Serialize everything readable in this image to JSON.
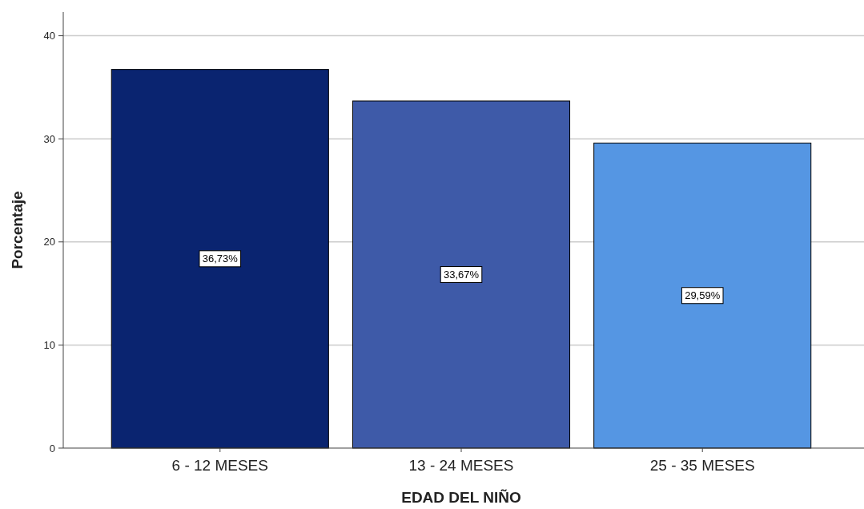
{
  "chart_data": {
    "type": "bar",
    "xlabel": "EDAD DEL NIÑO",
    "ylabel": "Porcentaje",
    "categories": [
      "6 - 12 MESES",
      "13 - 24 MESES",
      "25 - 35 MESES"
    ],
    "values": [
      36.73,
      33.67,
      29.59
    ],
    "colors": [
      "#0a2470",
      "#3e5aa8",
      "#5596e3"
    ],
    "value_labels": [
      "36,73%",
      "33,67%",
      "29,59%"
    ],
    "ylim": [
      0,
      42.3
    ],
    "yticks": [
      0,
      10,
      20,
      30,
      40
    ],
    "grid": "y"
  }
}
